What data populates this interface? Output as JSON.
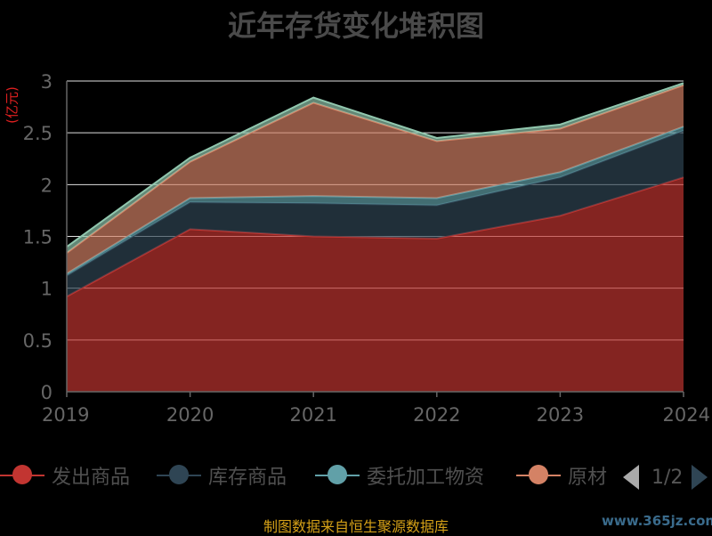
{
  "title": "近年存货变化堆积图",
  "unit_label": "(亿元)",
  "source_note": "制图数据来自恒生聚源数据库",
  "watermark": "www.365jz.com",
  "pager": {
    "text": "1/2"
  },
  "legend_items": [
    {
      "name": "发出商品",
      "color": "#c23531"
    },
    {
      "name": "库存商品",
      "color": "#2f4554"
    },
    {
      "name": "委托加工物资",
      "color": "#61a0a8"
    },
    {
      "name": "原材",
      "color": "#d48265"
    }
  ],
  "chart_data": {
    "type": "area",
    "stacked": true,
    "title": "近年存货变化堆积图",
    "ylabel": "(亿元)",
    "x": [
      "2019",
      "2020",
      "2021",
      "2022",
      "2023",
      "2024"
    ],
    "ylim": [
      0,
      3
    ],
    "yticks": [
      "0",
      "0.5",
      "1",
      "1.5",
      "2",
      "2.5",
      "3"
    ],
    "grid": true,
    "series": [
      {
        "name": "发出商品",
        "color": "#c23531",
        "values": [
          0.92,
          1.57,
          1.5,
          1.48,
          1.7,
          2.07
        ]
      },
      {
        "name": "库存商品",
        "color": "#2f4554",
        "values": [
          0.2,
          0.26,
          0.32,
          0.32,
          0.37,
          0.45
        ]
      },
      {
        "name": "委托加工物资",
        "color": "#61a0a8",
        "values": [
          0.02,
          0.04,
          0.07,
          0.07,
          0.05,
          0.04
        ]
      },
      {
        "name": "原材",
        "color": "#d48265",
        "values": [
          0.2,
          0.35,
          0.9,
          0.55,
          0.42,
          0.4
        ]
      },
      {
        "color": "#91c7ae",
        "values": [
          0.06,
          0.04,
          0.05,
          0.03,
          0.04,
          0.02
        ]
      }
    ]
  }
}
